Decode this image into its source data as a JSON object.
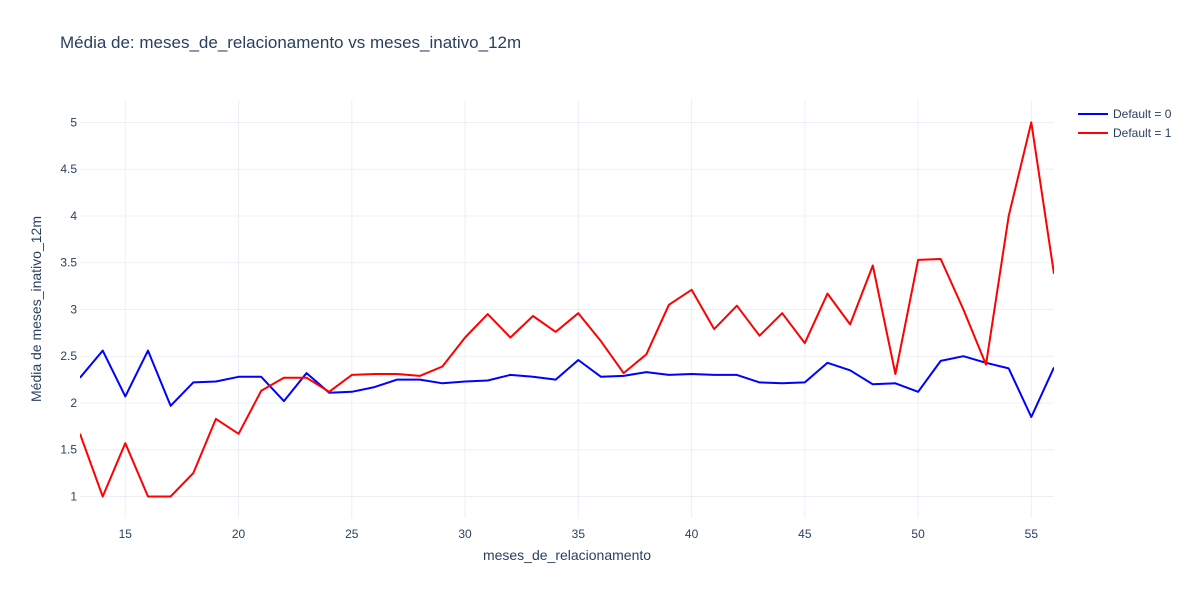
{
  "title": "Média de: meses_de_relacionamento vs meses_inativo_12m",
  "chart_data": {
    "type": "line",
    "title": "Média de: meses_de_relacionamento vs meses_inativo_12m",
    "xlabel": "meses_de_relacionamento",
    "ylabel": "Média de meses_inativo_12m",
    "xlim": [
      13,
      56
    ],
    "ylim": [
      0.77,
      5.24
    ],
    "xticks": [
      15,
      20,
      25,
      30,
      35,
      40,
      45,
      50,
      55
    ],
    "yticks": [
      1,
      1.5,
      2,
      2.5,
      3,
      3.5,
      4,
      4.5,
      5
    ],
    "ytick_labels": [
      "1",
      "1.5",
      "2",
      "2.5",
      "3",
      "3.5",
      "4",
      "4.5",
      "5"
    ],
    "grid": true,
    "legend_position": "top-right",
    "x": [
      13,
      14,
      15,
      16,
      17,
      18,
      19,
      20,
      21,
      22,
      23,
      24,
      25,
      26,
      27,
      28,
      29,
      30,
      31,
      32,
      33,
      34,
      35,
      36,
      37,
      38,
      39,
      40,
      41,
      42,
      43,
      44,
      45,
      46,
      47,
      48,
      49,
      50,
      51,
      52,
      53,
      54,
      55,
      56
    ],
    "series": [
      {
        "name": "Default = 0",
        "color": "#0000ff",
        "values": [
          2.27,
          2.56,
          2.07,
          2.56,
          1.97,
          2.22,
          2.23,
          2.28,
          2.28,
          2.02,
          2.32,
          2.11,
          2.12,
          2.17,
          2.25,
          2.25,
          2.21,
          2.23,
          2.24,
          2.3,
          2.28,
          2.25,
          2.46,
          2.28,
          2.29,
          2.33,
          2.3,
          2.31,
          2.3,
          2.3,
          2.22,
          2.21,
          2.22,
          2.43,
          2.35,
          2.2,
          2.21,
          2.12,
          2.45,
          2.5,
          2.43,
          2.37,
          1.85,
          2.38
        ]
      },
      {
        "name": "Default = 1",
        "color": "#ff0000",
        "values": [
          1.67,
          1.0,
          1.57,
          1.0,
          1.0,
          1.25,
          1.83,
          1.67,
          2.13,
          2.27,
          2.27,
          2.12,
          2.3,
          2.31,
          2.31,
          2.29,
          2.39,
          2.7,
          2.95,
          2.7,
          2.93,
          2.76,
          2.96,
          2.66,
          2.32,
          2.52,
          3.05,
          3.21,
          2.79,
          3.04,
          2.72,
          2.96,
          2.64,
          3.17,
          2.84,
          3.47,
          2.31,
          3.53,
          3.54,
          3.0,
          2.41,
          4.0,
          5.0,
          3.38
        ]
      }
    ]
  }
}
